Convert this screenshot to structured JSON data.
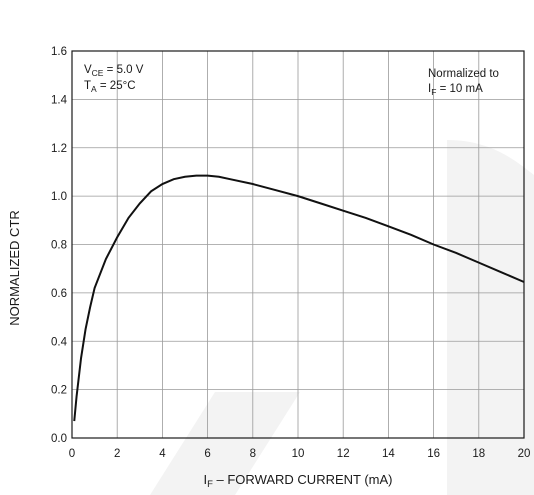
{
  "chart_data": {
    "type": "line",
    "title": "",
    "xlabel": "I_F – FORWARD CURRENT (mA)",
    "xlabel_parts": {
      "main": "I",
      "sub": "F",
      "rest": " – FORWARD CURRENT (mA)"
    },
    "ylabel": "NORMALIZED CTR",
    "xlim": [
      0,
      20
    ],
    "ylim": [
      0.0,
      1.6
    ],
    "x_ticks": [
      "0",
      "2",
      "4",
      "6",
      "8",
      "10",
      "12",
      "14",
      "16",
      "18",
      "20"
    ],
    "y_ticks": [
      "0.0",
      "0.2",
      "0.4",
      "0.6",
      "0.8",
      "1.0",
      "1.2",
      "1.4",
      "1.6"
    ],
    "grid": true,
    "annotations": {
      "conditions_line1": {
        "main": "V",
        "sub": "CE",
        "rest": " = 5.0 V"
      },
      "conditions_line2": {
        "main": "T",
        "sub": "A",
        "rest": " = 25°C"
      },
      "normalization_line1": "Normalized to",
      "normalization_line2": {
        "main": "I",
        "sub": "F",
        "rest": " = 10 mA"
      }
    },
    "series": [
      {
        "x": [
          0.1,
          0.2,
          0.4,
          0.6,
          0.8,
          1.0,
          1.5,
          2.0,
          2.5,
          3.0,
          3.5,
          4.0,
          4.5,
          5.0,
          5.5,
          6.0,
          6.5,
          7.0,
          8.0,
          9.0,
          10.0,
          11.0,
          12.0,
          13.0,
          14.0,
          15.0,
          16.0,
          17.0,
          18.0,
          19.0,
          20.0
        ],
        "y": [
          0.07,
          0.17,
          0.33,
          0.45,
          0.54,
          0.62,
          0.74,
          0.83,
          0.91,
          0.97,
          1.02,
          1.05,
          1.07,
          1.08,
          1.085,
          1.085,
          1.08,
          1.07,
          1.05,
          1.025,
          1.0,
          0.97,
          0.94,
          0.91,
          0.875,
          0.84,
          0.8,
          0.765,
          0.725,
          0.685,
          0.645
        ]
      }
    ]
  }
}
